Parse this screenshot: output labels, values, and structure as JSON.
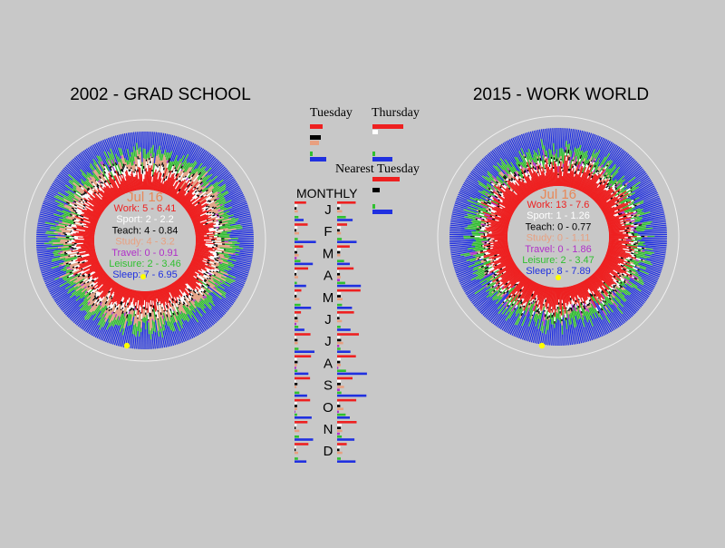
{
  "colors": {
    "background": "#c8c8c8",
    "work": "#ee2020",
    "sport": "#ffffff",
    "teach": "#000000",
    "study": "#e8a080",
    "travel": "#b030c8",
    "leisure": "#30c030",
    "sleep": "#2030e0",
    "highlight": "#ffff00",
    "date": "#e88858"
  },
  "chart_data": [
    {
      "type": "radial-bar",
      "title": "2002 - GRAD SCHOOL",
      "date": "Jul 16",
      "legend": [
        {
          "text": "Work: 5 - 6.41",
          "color": "#ee2020"
        },
        {
          "text": "Sport: 2 - 2.2",
          "color": "#ffffff"
        },
        {
          "text": "Teach: 4 - 0.84",
          "color": "#000000"
        },
        {
          "text": "Study: 4 - 3.2",
          "color": "#e8a080"
        },
        {
          "text": "Travel: 0 - 0.91",
          "color": "#b030c8"
        },
        {
          "text": "Leisure: 2 - 3.46",
          "color": "#30c030"
        },
        {
          "text": "Sleep: 7 - 6.95",
          "color": "#2030e0"
        }
      ],
      "averages": {
        "work": 6.41,
        "sport": 2.2,
        "teach": 0.84,
        "study": 3.2,
        "travel": 0.91,
        "leisure": 3.46,
        "sleep": 6.95
      }
    },
    {
      "type": "radial-bar",
      "title": "2015 - WORK WORLD",
      "date": "Jul 16",
      "legend": [
        {
          "text": "Work: 13 - 7.6",
          "color": "#ee2020"
        },
        {
          "text": "Sport: 1 - 1.26",
          "color": "#ffffff"
        },
        {
          "text": "Teach: 0 - 0.77",
          "color": "#000000"
        },
        {
          "text": "Study: 0 - 1.11",
          "color": "#e8a080"
        },
        {
          "text": "Travel: 0 - 1.86",
          "color": "#b030c8"
        },
        {
          "text": "Leisure: 2 - 3.47",
          "color": "#30c030"
        },
        {
          "text": "Sleep: 8 - 7.89",
          "color": "#2030e0"
        }
      ],
      "averages": {
        "work": 7.6,
        "sport": 1.26,
        "teach": 0.77,
        "study": 1.11,
        "travel": 1.86,
        "leisure": 3.47,
        "sleep": 7.89
      }
    }
  ],
  "center": {
    "tuesday_label": "Tuesday",
    "thursday_label": "Thursday",
    "nearest_label": "Nearest Tuesday",
    "monthly_label": "MONTHLY",
    "months": [
      "J",
      "F",
      "M",
      "A",
      "M",
      "J",
      "J",
      "A",
      "S",
      "O",
      "N",
      "D"
    ],
    "tuesday_bars": {
      "work": 14,
      "sport": 0,
      "teach": 12,
      "study": 10,
      "travel": 0,
      "leisure": 3,
      "sleep": 18
    },
    "thursday_bars": {
      "work": 34,
      "sport": 6,
      "teach": 0,
      "study": 0,
      "travel": 0,
      "leisure": 3,
      "sleep": 22
    },
    "nearest_bars": {
      "work": 30,
      "sport": 0,
      "teach": 8,
      "study": 0,
      "travel": 0,
      "leisure": 3,
      "sleep": 22
    }
  }
}
